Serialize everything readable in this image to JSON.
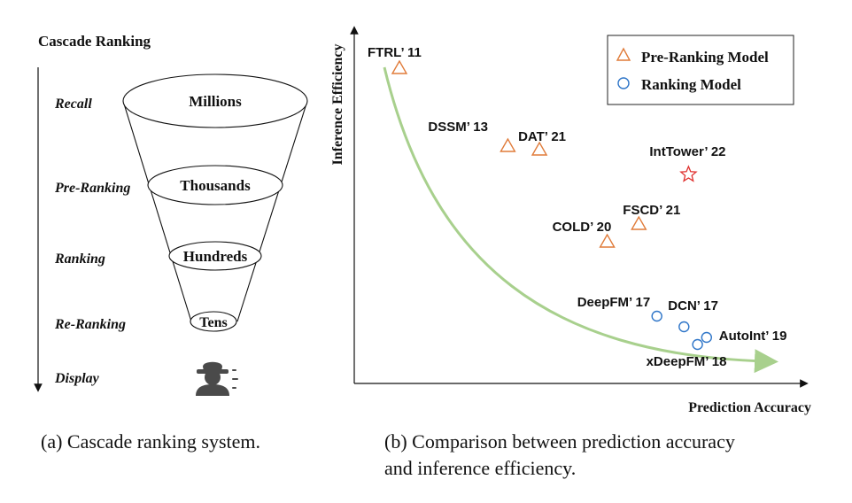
{
  "left_panel": {
    "title": "Cascade Ranking",
    "stages": [
      "Recall",
      "Pre-Ranking",
      "Ranking",
      "Re-Ranking",
      "Display"
    ],
    "funnel_levels": [
      "Millions",
      "Thousands",
      "Hundreds",
      "Tens"
    ],
    "caption": "(a) Cascade ranking system."
  },
  "right_panel": {
    "caption_line1": "(b) Comparison between prediction accuracy",
    "caption_line2": "and inference efficiency."
  },
  "chart_data": {
    "type": "scatter",
    "xlabel": "Prediction Accuracy",
    "ylabel": "Inference Efficiency",
    "x_ticks": "none",
    "y_ticks": "none",
    "legend": [
      {
        "name": "Pre-Ranking Model",
        "marker": "triangle",
        "color": "#e07b39"
      },
      {
        "name": "Ranking Model",
        "marker": "circle",
        "color": "#2e75c8"
      }
    ],
    "legend_position": "top-right",
    "trend_curve_color": "#a8d08d",
    "points": [
      {
        "label": "FTRL’ 11",
        "type": "pre-ranking",
        "x": 0.1,
        "y": 0.89
      },
      {
        "label": "DSSM’ 13",
        "type": "pre-ranking",
        "x": 0.34,
        "y": 0.67
      },
      {
        "label": "DAT’ 21",
        "type": "pre-ranking",
        "x": 0.41,
        "y": 0.66
      },
      {
        "label": "COLD’ 20",
        "type": "pre-ranking",
        "x": 0.56,
        "y": 0.4
      },
      {
        "label": "FSCD’ 21",
        "type": "pre-ranking",
        "x": 0.63,
        "y": 0.45
      },
      {
        "label": "IntTower’ 22",
        "type": "highlight",
        "color": "#e0312f",
        "x": 0.74,
        "y": 0.59
      },
      {
        "label": "DeepFM’ 17",
        "type": "ranking",
        "x": 0.67,
        "y": 0.19
      },
      {
        "label": "DCN’ 17",
        "type": "ranking",
        "x": 0.73,
        "y": 0.16
      },
      {
        "label": "AutoInt’ 19",
        "type": "ranking",
        "x": 0.78,
        "y": 0.13
      },
      {
        "label": "xDeepFM’ 18",
        "type": "ranking",
        "x": 0.76,
        "y": 0.11
      }
    ]
  }
}
